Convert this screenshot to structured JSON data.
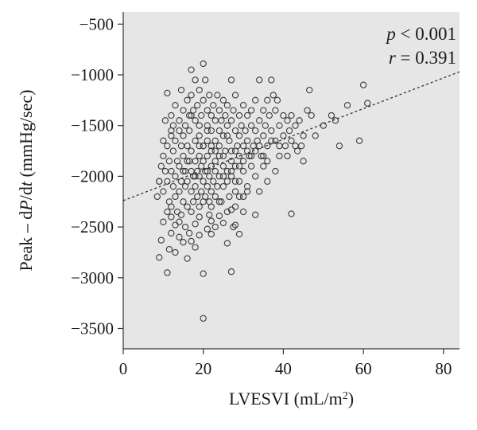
{
  "chart_data": {
    "type": "scatter",
    "xlabel_main": "LVESVI (mL/m",
    "xlabel_sup": "2",
    "xlabel_end": ")",
    "ylabel_pre": "Peak – d",
    "ylabel_p": "P",
    "ylabel_mid": "/d",
    "ylabel_t": "t",
    "ylabel_post": " (mmHg/sec)",
    "xlim": [
      0,
      84
    ],
    "ylim": [
      -3700,
      -380
    ],
    "xticks": [
      0,
      20,
      40,
      60,
      80
    ],
    "yticks": [
      -500,
      -1000,
      -1500,
      -2000,
      -2500,
      -3000,
      -3500
    ],
    "xtick_labels": [
      "0",
      "20",
      "40",
      "60",
      "80"
    ],
    "ytick_labels": [
      "−500",
      "−1000",
      "−1500",
      "−2000",
      "−2500",
      "−3000",
      "−3500"
    ],
    "background_color": "#e6e6e6",
    "point_color": "#3a3a3a",
    "annotation": {
      "p_symbol": "p",
      "p_rest": " < 0.001",
      "r_symbol": "r",
      "r_rest": " = 0.391"
    },
    "trendline": {
      "x": [
        0,
        84
      ],
      "y": [
        -2240,
        -970
      ]
    },
    "points": [
      [
        9,
        -2800
      ],
      [
        9.5,
        -2630
      ],
      [
        10,
        -2450
      ],
      [
        11,
        -2950
      ],
      [
        11.5,
        -2720
      ],
      [
        12,
        -2560
      ],
      [
        12,
        -2400
      ],
      [
        13,
        -2750
      ],
      [
        13,
        -2480
      ],
      [
        14,
        -2600
      ],
      [
        14.5,
        -2380
      ],
      [
        15,
        -2650
      ],
      [
        15.5,
        -2500
      ],
      [
        16,
        -2810
      ],
      [
        16.5,
        -2560
      ],
      [
        17,
        -2640
      ],
      [
        18,
        -2700
      ],
      [
        18,
        -2470
      ],
      [
        19,
        -2580
      ],
      [
        19,
        -2400
      ],
      [
        20,
        -2960
      ],
      [
        20,
        -3400
      ],
      [
        21,
        -2520
      ],
      [
        21.5,
        -2380
      ],
      [
        22,
        -2570
      ],
      [
        22,
        -2440
      ],
      [
        23,
        -2500
      ],
      [
        24,
        -2390
      ],
      [
        25,
        -2460
      ],
      [
        26,
        -2660
      ],
      [
        27,
        -2330
      ],
      [
        27,
        -2940
      ],
      [
        27.5,
        -2500
      ],
      [
        28,
        -2480
      ],
      [
        28,
        -2300
      ],
      [
        29,
        -2570
      ],
      [
        30,
        -2350
      ],
      [
        33,
        -2380
      ],
      [
        42,
        -2370
      ],
      [
        20,
        -2250
      ],
      [
        8.5,
        -2200
      ],
      [
        9,
        -2050
      ],
      [
        9.5,
        -1900
      ],
      [
        10,
        -1800
      ],
      [
        10,
        -2150
      ],
      [
        10.5,
        -1950
      ],
      [
        11,
        -1700
      ],
      [
        11,
        -2050
      ],
      [
        11.5,
        -2250
      ],
      [
        11.5,
        -1850
      ],
      [
        12,
        -1600
      ],
      [
        12,
        -1950
      ],
      [
        12,
        -2300
      ],
      [
        12.5,
        -2100
      ],
      [
        12.5,
        -1750
      ],
      [
        13,
        -1650
      ],
      [
        13,
        -2000
      ],
      [
        13,
        -2200
      ],
      [
        13.5,
        -1850
      ],
      [
        13.5,
        -2350
      ],
      [
        14,
        -1550
      ],
      [
        14,
        -1900
      ],
      [
        14,
        -2150
      ],
      [
        14.5,
        -1700
      ],
      [
        14.5,
        -2050
      ],
      [
        15,
        -1800
      ],
      [
        15,
        -2250
      ],
      [
        15,
        -1600
      ],
      [
        15.5,
        -1950
      ],
      [
        15.5,
        -2100
      ],
      [
        16,
        -1700
      ],
      [
        16,
        -2050
      ],
      [
        16,
        -2300
      ],
      [
        16.5,
        -1850
      ],
      [
        16.5,
        -1550
      ],
      [
        17,
        -1950
      ],
      [
        17,
        -2150
      ],
      [
        17,
        -1750
      ],
      [
        17.5,
        -2000
      ],
      [
        17.5,
        -2250
      ],
      [
        18,
        -1850
      ],
      [
        18,
        -1650
      ],
      [
        18,
        -2100
      ],
      [
        18.5,
        -1950
      ],
      [
        18.5,
        -2200
      ],
      [
        19,
        -1800
      ],
      [
        19,
        -2000
      ],
      [
        19,
        -1600
      ],
      [
        19.5,
        -2150
      ],
      [
        19.5,
        -1900
      ],
      [
        20,
        -1850
      ],
      [
        20,
        -2050
      ],
      [
        20,
        -1700
      ],
      [
        20.5,
        -2200
      ],
      [
        20.5,
        -1950
      ],
      [
        21,
        -1800
      ],
      [
        21,
        -2100
      ],
      [
        21,
        -1650
      ],
      [
        21.5,
        -2000
      ],
      [
        21.5,
        -2250
      ],
      [
        22,
        -1900
      ],
      [
        22,
        -2150
      ],
      [
        22,
        -1750
      ],
      [
        22.5,
        -2050
      ],
      [
        23,
        -1850
      ],
      [
        23,
        -2200
      ],
      [
        23,
        -1950
      ],
      [
        23.5,
        -2100
      ],
      [
        24,
        -1800
      ],
      [
        24,
        -2000
      ],
      [
        24.5,
        -2250
      ],
      [
        25,
        -1900
      ],
      [
        25,
        -2100
      ],
      [
        25.5,
        -1750
      ],
      [
        26,
        -2050
      ],
      [
        26,
        -1950
      ],
      [
        26.5,
        -2200
      ],
      [
        27,
        -1850
      ],
      [
        27,
        -2000
      ],
      [
        28,
        -1900
      ],
      [
        28,
        -2150
      ],
      [
        29,
        -1800
      ],
      [
        29,
        -2050
      ],
      [
        30,
        -1950
      ],
      [
        31,
        -2100
      ],
      [
        32,
        -1900
      ],
      [
        33,
        -2000
      ],
      [
        34,
        -2150
      ],
      [
        35,
        -1900
      ],
      [
        36,
        -2050
      ],
      [
        38,
        -1950
      ],
      [
        10.5,
        -1450
      ],
      [
        11,
        -1180
      ],
      [
        12,
        -1400
      ],
      [
        12,
        -1550
      ],
      [
        13,
        -1300
      ],
      [
        14,
        -1450
      ],
      [
        14.5,
        -1150
      ],
      [
        15,
        -1350
      ],
      [
        15.5,
        -1500
      ],
      [
        16,
        -1250
      ],
      [
        16.5,
        -1400
      ],
      [
        17,
        -950
      ],
      [
        17,
        -1200
      ],
      [
        17.5,
        -1350
      ],
      [
        18,
        -1050
      ],
      [
        18,
        -1450
      ],
      [
        18.5,
        -1300
      ],
      [
        19,
        -1150
      ],
      [
        19,
        -1500
      ],
      [
        19.5,
        -1400
      ],
      [
        20,
        -890
      ],
      [
        20,
        -1250
      ],
      [
        20.5,
        -1050
      ],
      [
        21,
        -1350
      ],
      [
        21,
        -1500
      ],
      [
        21.5,
        -1200
      ],
      [
        22,
        -1400
      ],
      [
        22,
        -1550
      ],
      [
        22.5,
        -1300
      ],
      [
        23,
        -1450
      ],
      [
        23.5,
        -1200
      ],
      [
        24,
        -1350
      ],
      [
        24,
        -1550
      ],
      [
        24.5,
        -1450
      ],
      [
        25,
        -1250
      ],
      [
        25,
        -1600
      ],
      [
        25.5,
        -1400
      ],
      [
        26,
        -1500
      ],
      [
        26,
        -1300
      ],
      [
        26.5,
        -1650
      ],
      [
        27,
        -1050
      ],
      [
        27,
        -1450
      ],
      [
        27.5,
        -1350
      ],
      [
        28,
        -1550
      ],
      [
        28,
        -1200
      ],
      [
        28.5,
        -1700
      ],
      [
        29,
        -1400
      ],
      [
        29,
        -1600
      ],
      [
        29.5,
        -1500
      ],
      [
        30,
        -1300
      ],
      [
        30,
        -1700
      ],
      [
        30.5,
        -1550
      ],
      [
        31,
        -1400
      ],
      [
        31,
        -1650
      ],
      [
        31.5,
        -1800
      ],
      [
        32,
        -1500
      ],
      [
        32,
        -1350
      ],
      [
        32.5,
        -1700
      ],
      [
        33,
        -1550
      ],
      [
        33,
        -1250
      ],
      [
        33.5,
        -1650
      ],
      [
        34,
        -1050
      ],
      [
        34,
        -1450
      ],
      [
        34.5,
        -1800
      ],
      [
        35,
        -1350
      ],
      [
        35,
        -1600
      ],
      [
        35.5,
        -1500
      ],
      [
        36,
        -1700
      ],
      [
        36,
        -1250
      ],
      [
        36.5,
        -1400
      ],
      [
        37,
        -1050
      ],
      [
        37,
        -1550
      ],
      [
        37.5,
        -1200
      ],
      [
        38,
        -1650
      ],
      [
        38,
        -1350
      ],
      [
        38.5,
        -1250
      ],
      [
        39,
        -1500
      ],
      [
        39,
        -1800
      ],
      [
        40,
        -1400
      ],
      [
        40,
        -1600
      ],
      [
        40.5,
        -1700
      ],
      [
        41,
        -1450
      ],
      [
        41.5,
        -1550
      ],
      [
        42,
        -1400
      ],
      [
        42,
        -1650
      ],
      [
        43,
        -1500
      ],
      [
        43.5,
        -1750
      ],
      [
        44,
        -1450
      ],
      [
        44.5,
        -1700
      ],
      [
        45,
        -1600
      ],
      [
        46,
        -1350
      ],
      [
        46.5,
        -1150
      ],
      [
        47,
        -1400
      ],
      [
        48,
        -1600
      ],
      [
        50,
        -1500
      ],
      [
        52,
        -1400
      ],
      [
        53,
        -1450
      ],
      [
        54,
        -1700
      ],
      [
        56,
        -1300
      ],
      [
        59,
        -1650
      ],
      [
        60,
        -1100
      ],
      [
        61,
        -1280
      ],
      [
        9,
        -2050
      ],
      [
        10,
        -1650
      ],
      [
        11,
        -2350
      ],
      [
        12.5,
        -1500
      ],
      [
        14,
        -2450
      ],
      [
        15,
        -1950
      ],
      [
        16,
        -1850
      ],
      [
        17,
        -2350
      ],
      [
        18,
        -2000
      ],
      [
        19,
        -2300
      ],
      [
        20,
        -1700
      ],
      [
        21,
        -1950
      ],
      [
        22,
        -1700
      ],
      [
        23,
        -1650
      ],
      [
        24,
        -1700
      ],
      [
        25,
        -1800
      ],
      [
        26,
        -1600
      ],
      [
        27,
        -1750
      ],
      [
        28,
        -1750
      ],
      [
        29,
        -1900
      ],
      [
        30,
        -1850
      ],
      [
        31,
        -1750
      ],
      [
        32,
        -1800
      ],
      [
        33,
        -1750
      ],
      [
        34,
        -1700
      ],
      [
        35,
        -1800
      ],
      [
        36,
        -1850
      ],
      [
        37,
        -1650
      ],
      [
        39,
        -1700
      ],
      [
        41,
        -1800
      ],
      [
        43,
        -1700
      ],
      [
        45,
        -1850
      ],
      [
        17,
        -1400
      ],
      [
        19,
        -1700
      ],
      [
        21,
        -1550
      ],
      [
        23,
        -1750
      ],
      [
        25,
        -2000
      ],
      [
        27,
        -1950
      ],
      [
        29,
        -2200
      ],
      [
        31,
        -2150
      ],
      [
        24,
        -2250
      ],
      [
        26,
        -2350
      ],
      [
        22,
        -2300
      ],
      [
        28,
        -2050
      ],
      [
        30,
        -2200
      ]
    ]
  }
}
